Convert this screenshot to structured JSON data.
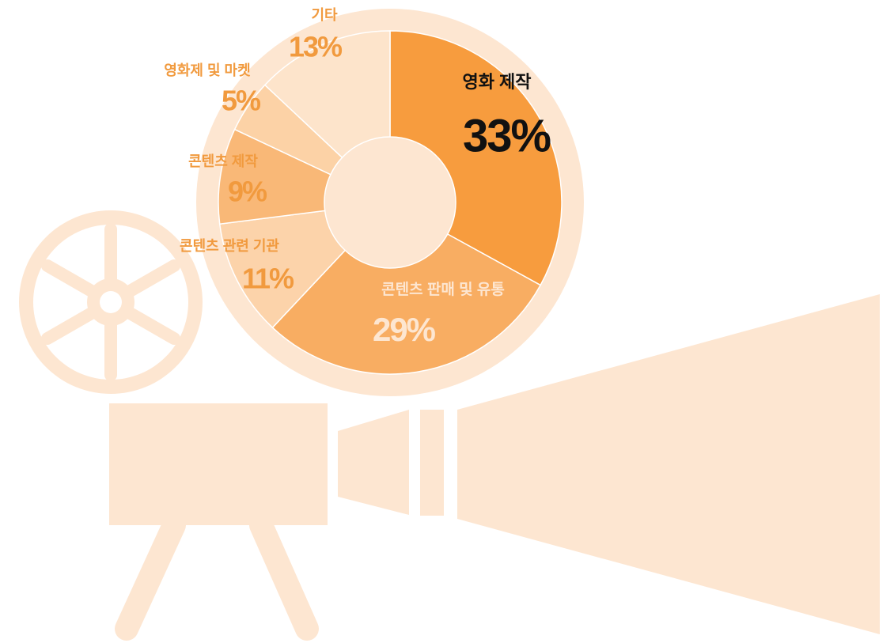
{
  "chart_data": {
    "type": "donut",
    "categories": [
      "영화 제작",
      "콘텐츠 판매 및 유통",
      "콘텐츠 관련 기관",
      "콘텐츠 제작",
      "영화제 및 마켓",
      "기타"
    ],
    "values": [
      33,
      29,
      11,
      9,
      5,
      13
    ],
    "value_labels": [
      "33%",
      "29%",
      "11%",
      "9%",
      "5%",
      "13%"
    ],
    "colors": [
      "#f79c3e",
      "#f8ad62",
      "#fcd3aa",
      "#f9b877",
      "#fcd2a6",
      "#fde4cb"
    ]
  }
}
